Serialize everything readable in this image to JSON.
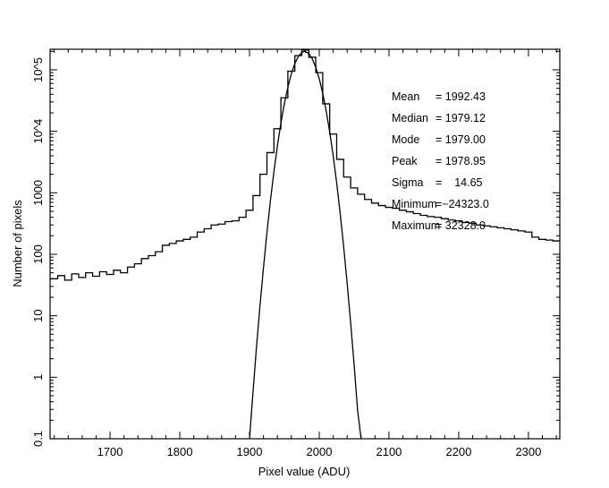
{
  "chart_data": {
    "type": "line",
    "title": "",
    "xlabel": "Pixel value (ADU)",
    "ylabel": "Number of pixels",
    "xlim": [
      1614,
      2345
    ],
    "ylim": [
      0.1,
      216000
    ],
    "yscale": "log",
    "grid": false,
    "x_ticks": [
      1700,
      1800,
      1900,
      2000,
      2100,
      2200,
      2300
    ],
    "x_tick_labels": [
      "1700",
      "1800",
      "1900",
      "2000",
      "2100",
      "2200",
      "2300"
    ],
    "y_ticks": [
      0.1,
      1,
      10,
      100,
      1000,
      10000,
      100000
    ],
    "y_tick_labels": [
      "0.1",
      "1",
      "10",
      "100",
      "1000",
      "10^4",
      "10^5"
    ],
    "series": [
      {
        "style": "histogram-step",
        "color": "#000000",
        "x": [
          1620,
          1630,
          1640,
          1650,
          1660,
          1670,
          1680,
          1690,
          1700,
          1710,
          1720,
          1730,
          1740,
          1750,
          1760,
          1770,
          1780,
          1790,
          1800,
          1810,
          1820,
          1830,
          1840,
          1850,
          1860,
          1870,
          1880,
          1890,
          1900,
          1910,
          1920,
          1930,
          1940,
          1950,
          1960,
          1970,
          1980,
          1990,
          2000,
          2010,
          2020,
          2030,
          2040,
          2050,
          2060,
          2070,
          2080,
          2090,
          2100,
          2110,
          2120,
          2130,
          2140,
          2150,
          2160,
          2170,
          2180,
          2190,
          2200,
          2210,
          2220,
          2230,
          2240,
          2250,
          2260,
          2270,
          2280,
          2290,
          2300,
          2310,
          2320,
          2330,
          2340
        ],
        "y": [
          40,
          45,
          38,
          48,
          42,
          50,
          44,
          52,
          47,
          55,
          50,
          62,
          70,
          85,
          95,
          110,
          140,
          150,
          165,
          175,
          190,
          230,
          260,
          300,
          310,
          340,
          350,
          400,
          520,
          900,
          2000,
          4500,
          11000,
          35000,
          95000,
          170000,
          210000,
          160000,
          90000,
          28000,
          9000,
          3500,
          1800,
          1200,
          950,
          780,
          680,
          620,
          580,
          560,
          520,
          490,
          460,
          430,
          410,
          400,
          380,
          360,
          350,
          330,
          320,
          300,
          290,
          280,
          270,
          260,
          250,
          240,
          230,
          190,
          175,
          170,
          165
        ]
      },
      {
        "style": "gaussian-fit",
        "color": "#000000",
        "x": [
          1900,
          1905,
          1910,
          1915,
          1920,
          1925,
          1930,
          1935,
          1940,
          1945,
          1950,
          1955,
          1960,
          1965,
          1970,
          1975,
          1979,
          1980,
          1985,
          1990,
          1995,
          2000,
          2005,
          2010,
          2015,
          2020,
          2025,
          2030,
          2035,
          2040,
          2045,
          2050,
          2055,
          2060
        ],
        "y": [
          0.097,
          0.57,
          3.1,
          14.4,
          60,
          225,
          745,
          2200,
          5800,
          13600,
          28200,
          52200,
          86200,
          126600,
          165600,
          192600,
          200000,
          199500,
          183900,
          150900,
          110200,
          71600,
          41400,
          21300,
          9760,
          3980,
          1450,
          467,
          134,
          34,
          7.8,
          1.6,
          0.29,
          0.046
        ]
      }
    ],
    "annotations": [
      {
        "label": "Mean",
        "value": "= 1992.43"
      },
      {
        "label": "Median",
        "value": "= 1979.12"
      },
      {
        "label": "Mode",
        "value": "= 1979.00"
      },
      {
        "label": "Peak",
        "value": "= 1978.95"
      },
      {
        "label": "Sigma",
        "value": "=    14.65"
      },
      {
        "label": "Minimum",
        "value": "=−24323.0"
      },
      {
        "label": "Maximum",
        "value": "= 32328.0"
      }
    ]
  }
}
